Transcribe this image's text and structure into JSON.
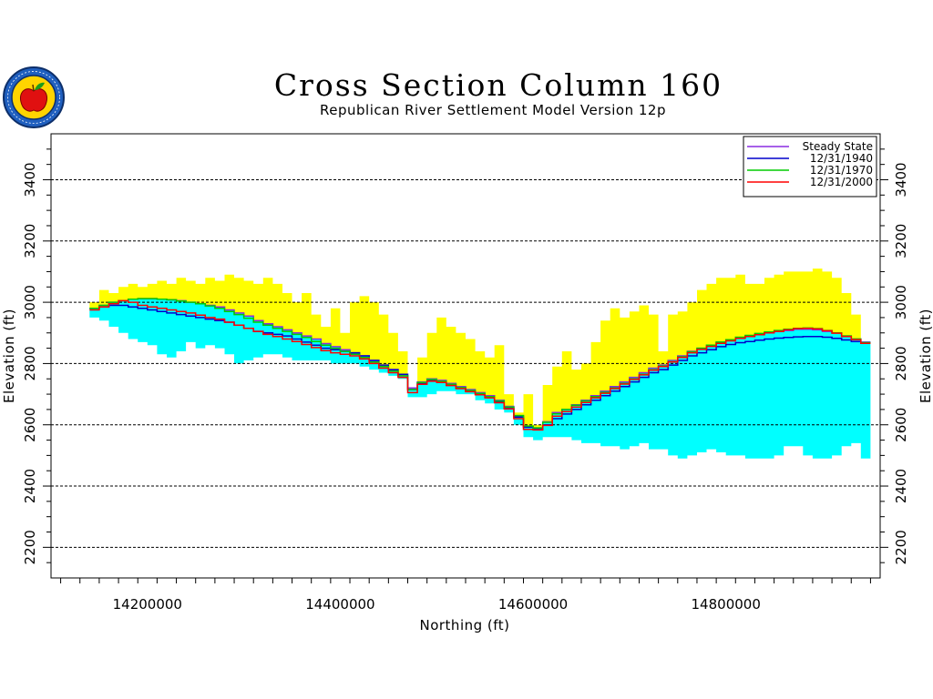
{
  "chart_data": {
    "type": "area",
    "title": "Cross Section Column 160",
    "subtitle": "Republican River Settlement Model Version 12p",
    "xlabel": "Northing (ft)",
    "ylabel": "Elevation (ft)",
    "xlim": [
      14100000,
      14960000
    ],
    "ylim": [
      2100,
      3550
    ],
    "x_ticks": [
      14200000,
      14400000,
      14600000,
      14800000
    ],
    "x_tick_labels": [
      "14200000",
      "14400000",
      "14600000",
      "14800000"
    ],
    "y_ticks": [
      2200,
      2400,
      2600,
      2800,
      3000,
      3200,
      3400
    ],
    "y_tick_labels": [
      "2200",
      "2400",
      "2600",
      "2800",
      "3000",
      "3200",
      "3400"
    ],
    "grid": "horizontal dashed",
    "legend_position": "top-right",
    "colors": {
      "unsaturated": "#ffff00",
      "saturated": "#00ffff",
      "steady_state": "#8a2be2",
      "y1940": "#0000cc",
      "y1970": "#00cc00",
      "y2000": "#ff0000"
    },
    "x": [
      14145000,
      14155000,
      14165000,
      14175000,
      14185000,
      14195000,
      14205000,
      14215000,
      14225000,
      14235000,
      14245000,
      14255000,
      14265000,
      14275000,
      14285000,
      14295000,
      14305000,
      14315000,
      14325000,
      14335000,
      14345000,
      14355000,
      14365000,
      14375000,
      14385000,
      14395000,
      14405000,
      14415000,
      14425000,
      14435000,
      14445000,
      14455000,
      14465000,
      14475000,
      14485000,
      14495000,
      14505000,
      14515000,
      14525000,
      14535000,
      14545000,
      14555000,
      14565000,
      14575000,
      14585000,
      14595000,
      14605000,
      14615000,
      14625000,
      14635000,
      14645000,
      14655000,
      14665000,
      14675000,
      14685000,
      14695000,
      14705000,
      14715000,
      14725000,
      14735000,
      14745000,
      14755000,
      14765000,
      14775000,
      14785000,
      14795000,
      14805000,
      14815000,
      14825000,
      14835000,
      14845000,
      14855000,
      14865000,
      14875000,
      14885000,
      14895000,
      14905000,
      14915000,
      14925000,
      14935000,
      14945000
    ],
    "land_surface": [
      3000,
      3040,
      3030,
      3050,
      3060,
      3050,
      3060,
      3070,
      3060,
      3080,
      3070,
      3060,
      3080,
      3070,
      3090,
      3080,
      3070,
      3060,
      3080,
      3060,
      3030,
      3000,
      3030,
      2960,
      2920,
      2980,
      2900,
      3000,
      3020,
      3000,
      2960,
      2900,
      2840,
      2700,
      2820,
      2900,
      2950,
      2920,
      2900,
      2880,
      2840,
      2820,
      2860,
      2700,
      2640,
      2700,
      2600,
      2730,
      2790,
      2840,
      2780,
      2800,
      2870,
      2940,
      2980,
      2950,
      2970,
      2990,
      2960,
      2840,
      2960,
      2970,
      3000,
      3040,
      3060,
      3080,
      3080,
      3090,
      3060,
      3060,
      3080,
      3090,
      3100,
      3100,
      3100,
      3110,
      3100,
      3080,
      3030,
      2960,
      2870
    ],
    "aquifer_base": [
      2950,
      2940,
      2920,
      2900,
      2880,
      2870,
      2860,
      2830,
      2820,
      2840,
      2870,
      2850,
      2860,
      2850,
      2830,
      2800,
      2810,
      2820,
      2830,
      2830,
      2820,
      2810,
      2810,
      2810,
      2810,
      2800,
      2800,
      2800,
      2790,
      2780,
      2770,
      2760,
      2750,
      2690,
      2690,
      2700,
      2710,
      2710,
      2700,
      2700,
      2680,
      2670,
      2650,
      2640,
      2600,
      2560,
      2550,
      2560,
      2560,
      2560,
      2550,
      2540,
      2540,
      2530,
      2530,
      2520,
      2530,
      2540,
      2520,
      2520,
      2500,
      2490,
      2500,
      2510,
      2520,
      2510,
      2500,
      2500,
      2490,
      2490,
      2490,
      2500,
      2530,
      2530,
      2500,
      2490,
      2490,
      2500,
      2530,
      2540,
      2490
    ],
    "series": [
      {
        "name": "Steady State",
        "values": [
          2980,
          2990,
          3000,
          3005,
          3010,
          3012,
          3012,
          3010,
          3008,
          3005,
          3000,
          2995,
          2990,
          2985,
          2975,
          2965,
          2955,
          2940,
          2930,
          2920,
          2910,
          2900,
          2890,
          2880,
          2865,
          2855,
          2845,
          2835,
          2825,
          2810,
          2790,
          2780,
          2760,
          2720,
          2740,
          2750,
          2745,
          2735,
          2725,
          2715,
          2705,
          2695,
          2680,
          2660,
          2630,
          2595,
          2590,
          2610,
          2640,
          2650,
          2665,
          2680,
          2695,
          2710,
          2725,
          2740,
          2755,
          2770,
          2785,
          2795,
          2810,
          2825,
          2840,
          2850,
          2860,
          2870,
          2878,
          2885,
          2890,
          2895,
          2900,
          2905,
          2908,
          2912,
          2912,
          2910,
          2905,
          2900,
          2890,
          2880,
          2870
        ]
      },
      {
        "name": "12/31/1940",
        "values": [
          2980,
          2985,
          2990,
          2990,
          2985,
          2980,
          2975,
          2970,
          2965,
          2960,
          2955,
          2950,
          2945,
          2940,
          2935,
          2925,
          2915,
          2905,
          2900,
          2895,
          2890,
          2880,
          2870,
          2860,
          2850,
          2845,
          2840,
          2835,
          2825,
          2810,
          2795,
          2780,
          2765,
          2715,
          2735,
          2745,
          2740,
          2730,
          2720,
          2710,
          2700,
          2690,
          2675,
          2655,
          2625,
          2592,
          2588,
          2600,
          2620,
          2635,
          2650,
          2665,
          2680,
          2695,
          2710,
          2725,
          2740,
          2755,
          2770,
          2780,
          2795,
          2810,
          2825,
          2835,
          2845,
          2855,
          2862,
          2868,
          2872,
          2876,
          2880,
          2883,
          2885,
          2887,
          2888,
          2888,
          2886,
          2882,
          2877,
          2872,
          2868
        ]
      },
      {
        "name": "12/31/1970",
        "values": [
          2980,
          2990,
          3000,
          3005,
          3010,
          3012,
          3012,
          3010,
          3008,
          3004,
          3000,
          2995,
          2988,
          2980,
          2970,
          2960,
          2948,
          2935,
          2925,
          2915,
          2905,
          2895,
          2885,
          2872,
          2860,
          2850,
          2840,
          2830,
          2820,
          2805,
          2790,
          2775,
          2760,
          2715,
          2738,
          2748,
          2742,
          2732,
          2722,
          2712,
          2702,
          2692,
          2678,
          2658,
          2630,
          2596,
          2590,
          2608,
          2636,
          2650,
          2664,
          2678,
          2692,
          2706,
          2720,
          2735,
          2750,
          2765,
          2780,
          2792,
          2806,
          2822,
          2838,
          2850,
          2860,
          2870,
          2878,
          2886,
          2892,
          2898,
          2903,
          2908,
          2912,
          2915,
          2916,
          2914,
          2908,
          2900,
          2890,
          2880,
          2868
        ]
      },
      {
        "name": "12/31/2000",
        "values": [
          2975,
          2985,
          2995,
          3005,
          3000,
          2990,
          2985,
          2980,
          2975,
          2970,
          2965,
          2958,
          2950,
          2945,
          2935,
          2925,
          2915,
          2905,
          2895,
          2888,
          2880,
          2872,
          2862,
          2852,
          2842,
          2835,
          2830,
          2825,
          2815,
          2800,
          2785,
          2770,
          2755,
          2705,
          2732,
          2742,
          2738,
          2728,
          2718,
          2708,
          2698,
          2688,
          2672,
          2652,
          2620,
          2585,
          2583,
          2598,
          2628,
          2643,
          2658,
          2673,
          2688,
          2703,
          2718,
          2733,
          2748,
          2763,
          2778,
          2790,
          2805,
          2820,
          2835,
          2846,
          2856,
          2866,
          2874,
          2882,
          2888,
          2894,
          2900,
          2905,
          2910,
          2914,
          2915,
          2913,
          2907,
          2899,
          2888,
          2878,
          2866
        ]
      }
    ]
  }
}
